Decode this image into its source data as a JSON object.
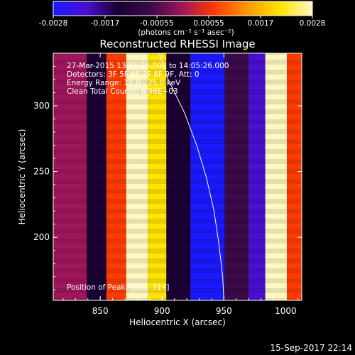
{
  "colorbar": {
    "ticks": [
      "-0.0028",
      "-0.0017",
      "-0.00055",
      "0.00055",
      "0.0017",
      "0.0028"
    ],
    "unit_label": "(photons cm⁻² s⁻¹ asec⁻²)",
    "colormap": [
      "#1a1aff",
      "#4b0fd2",
      "#1a0033",
      "#3a0a4a",
      "#a0165a",
      "#ff3b00",
      "#ff9a00",
      "#ffe400",
      "#fff8c0"
    ]
  },
  "chart_data": {
    "type": "heatmap",
    "title": "Reconstructed RHESSI Image",
    "xlabel": "Heliocentric X (arcsec)",
    "ylabel": "Heliocentric Y (arcsec)",
    "xlim": [
      812,
      1013
    ],
    "ylim": [
      152,
      340
    ],
    "x_ticks": [
      850,
      900,
      950,
      1000
    ],
    "y_ticks": [
      200,
      250,
      300
    ],
    "stripes": [
      {
        "x_center": 830,
        "level": 0.0
      },
      {
        "x_center": 848,
        "level": -0.6
      },
      {
        "x_center": 862,
        "level": 0.3
      },
      {
        "x_center": 880,
        "level": 1.0
      },
      {
        "x_center": 897,
        "level": 0.85
      },
      {
        "x_center": 910,
        "level": -0.5
      },
      {
        "x_center": 936,
        "level": -0.9
      },
      {
        "x_center": 965,
        "level": -0.2
      },
      {
        "x_center": 975,
        "level": -0.7
      },
      {
        "x_center": 992,
        "level": 0.95
      },
      {
        "x_center": 1010,
        "level": 0.2
      }
    ],
    "limb_curve": [
      [
        897,
        342
      ],
      [
        905,
        320
      ],
      [
        918,
        295
      ],
      [
        928,
        270
      ],
      [
        936,
        245
      ],
      [
        942,
        220
      ],
      [
        946,
        195
      ],
      [
        949,
        170
      ],
      [
        950,
        152
      ]
    ],
    "annotations": [
      "27-Mar-2015 13:55:26.000 to 14:05:26.000",
      "Detectors: 3F 5F 6F 7F 8F 9F, Att: 0",
      "Energy Range: 12.0 - 25.0 keV",
      "Clean    Total Counts: 6.96E+03"
    ],
    "position_label": "Position of Peak: [881, 314]"
  },
  "footer": {
    "timestamp": "15-Sep-2017 22:14"
  }
}
